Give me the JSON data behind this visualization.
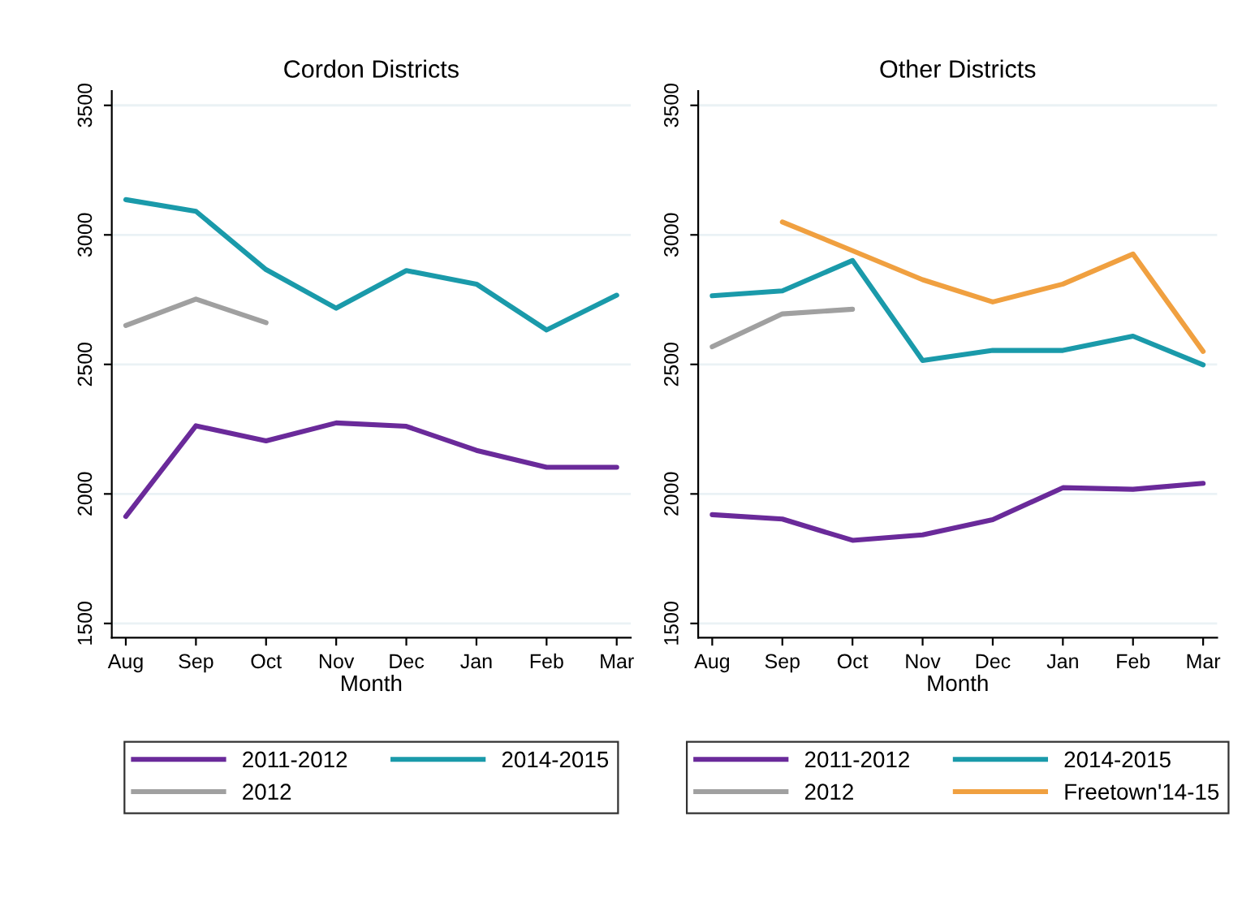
{
  "chart_data": [
    {
      "type": "line",
      "title": "Cordon Districts",
      "xlabel": "Month",
      "categories": [
        "Aug",
        "Sep",
        "Oct",
        "Nov",
        "Dec",
        "Jan",
        "Feb",
        "Mar"
      ],
      "ylim": [
        1445,
        3555
      ],
      "yticks": [
        1500,
        2000,
        2500,
        3000,
        3500
      ],
      "grid": "y",
      "legend": "bottom",
      "line_style": "solid",
      "series": [
        {
          "name": "2011-2012",
          "color": "#6a2a9a",
          "values": [
            1913,
            2263,
            2205,
            2274,
            2261,
            2168,
            2103,
            2103
          ]
        },
        {
          "name": "2012",
          "color": "#a0a0a0",
          "values": [
            2650,
            2752,
            2661,
            null,
            null,
            null,
            null,
            null
          ]
        },
        {
          "name": "2014-2015",
          "color": "#1a9aaa",
          "values": [
            3136,
            3091,
            2866,
            2717,
            2862,
            2810,
            2633,
            2767
          ]
        }
      ]
    },
    {
      "type": "line",
      "title": "Other Districts",
      "xlabel": "Month",
      "categories": [
        "Aug",
        "Sep",
        "Oct",
        "Nov",
        "Dec",
        "Jan",
        "Feb",
        "Mar"
      ],
      "ylim": [
        1445,
        3555
      ],
      "yticks": [
        1500,
        2000,
        2500,
        3000,
        3500
      ],
      "grid": "y",
      "legend": "bottom",
      "line_style": "solid",
      "series": [
        {
          "name": "2011-2012",
          "color": "#6a2a9a",
          "values": [
            1920,
            1903,
            1821,
            1842,
            1901,
            2024,
            2018,
            2041
          ]
        },
        {
          "name": "2012",
          "color": "#a0a0a0",
          "values": [
            2568,
            2695,
            2713,
            null,
            null,
            null,
            null,
            null
          ]
        },
        {
          "name": "2014-2015",
          "color": "#1a9aaa",
          "values": [
            2765,
            2784,
            2901,
            2515,
            2554,
            2554,
            2609,
            2498
          ]
        },
        {
          "name": "Freetown'14-15",
          "color": "#f0a040",
          "values": [
            null,
            3050,
            2939,
            2827,
            2741,
            2810,
            2926,
            2550
          ]
        }
      ]
    }
  ]
}
